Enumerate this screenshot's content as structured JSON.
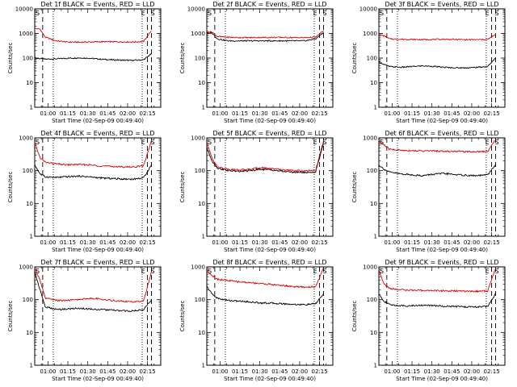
{
  "figure": {
    "background": "#ffffff",
    "colors": {
      "events": "#000000",
      "lld": "#dd0000"
    }
  },
  "chart_data": [
    {
      "type": "line",
      "title": "Det 1f BLACK = Events, RED = LLD",
      "xlabel": "Start Time (02-Sep-09 00:49:40)",
      "ylabel": "Counts/sec",
      "scale": "log",
      "ylim": [
        1,
        10000
      ],
      "xlim_minutes": [
        50,
        145
      ],
      "x_tick_labels": [
        "01:00",
        "01:15",
        "01:30",
        "01:45",
        "02:00",
        "02:15"
      ],
      "y_tick_labels": [
        "1",
        "10",
        "100",
        "1000",
        "10000"
      ],
      "markers": [
        "S",
        "E",
        "S"
      ],
      "series": [
        {
          "name": "BLACK = Events",
          "color": "#000000",
          "values": [
            100,
            95,
            90,
            93,
            98,
            102,
            98,
            90,
            85,
            82,
            80,
            85,
            150
          ]
        },
        {
          "name": "RED = LLD",
          "color": "#dd0000",
          "values": [
            1600,
            1500,
            700,
            500,
            450,
            440,
            450,
            460,
            460,
            455,
            450,
            470,
            1300
          ]
        }
      ]
    },
    {
      "type": "line",
      "title": "Det 2f BLACK = Events, RED = LLD",
      "xlabel": "Start Time (02-Sep-09 00:49:40)",
      "ylabel": "Counts/sec",
      "scale": "log",
      "ylim": [
        1,
        10000
      ],
      "xlim_minutes": [
        50,
        145
      ],
      "x_tick_labels": [
        "01:00",
        "01:15",
        "01:30",
        "01:45",
        "02:00",
        "02:15"
      ],
      "y_tick_labels": [
        "1",
        "10",
        "100",
        "1000",
        "10000"
      ],
      "markers": [
        "S",
        "E",
        "S"
      ],
      "series": [
        {
          "name": "BLACK = Events",
          "color": "#000000",
          "values": [
            1100,
            1050,
            600,
            500,
            500,
            500,
            500,
            500,
            500,
            500,
            500,
            600,
            1100
          ]
        },
        {
          "name": "RED = LLD",
          "color": "#dd0000",
          "values": [
            1200,
            1150,
            750,
            700,
            680,
            680,
            690,
            690,
            690,
            680,
            680,
            700,
            1300
          ]
        }
      ]
    },
    {
      "type": "line",
      "title": "Det 3f BLACK = Events, RED = LLD",
      "xlabel": "Start Time (02-Sep-09 00:49:40)",
      "ylabel": "Counts/sec",
      "scale": "log",
      "ylim": [
        1,
        10000
      ],
      "xlim_minutes": [
        50,
        145
      ],
      "x_tick_labels": [
        "01:00",
        "01:15",
        "01:30",
        "01:45",
        "02:00",
        "02:15"
      ],
      "y_tick_labels": [
        "1",
        "10",
        "100",
        "1000",
        "10000"
      ],
      "markers": [
        "S",
        "E",
        "S"
      ],
      "series": [
        {
          "name": "BLACK = Events",
          "color": "#000000",
          "values": [
            70,
            55,
            45,
            42,
            45,
            48,
            46,
            42,
            40,
            40,
            42,
            45,
            100
          ]
        },
        {
          "name": "RED = LLD",
          "color": "#dd0000",
          "values": [
            900,
            800,
            600,
            580,
            570,
            560,
            570,
            580,
            570,
            560,
            560,
            570,
            900
          ]
        }
      ]
    },
    {
      "type": "line",
      "title": "Det 4f BLACK = Events, RED = LLD",
      "xlabel": "Start Time (02-Sep-09 00:49:40)",
      "ylabel": "Counts/sec",
      "scale": "log",
      "ylim": [
        1,
        1000
      ],
      "xlim_minutes": [
        50,
        145
      ],
      "x_tick_labels": [
        "01:00",
        "01:15",
        "01:30",
        "01:45",
        "02:00",
        "02:15"
      ],
      "y_tick_labels": [
        "1",
        "10",
        "100",
        "1000"
      ],
      "markers": [
        "S",
        "E",
        "S"
      ],
      "series": [
        {
          "name": "BLACK = Events",
          "color": "#000000",
          "values": [
            150,
            80,
            65,
            62,
            65,
            68,
            65,
            60,
            58,
            56,
            55,
            60,
            150
          ]
        },
        {
          "name": "RED = LLD",
          "color": "#dd0000",
          "values": [
            700,
            250,
            180,
            160,
            150,
            155,
            150,
            140,
            135,
            130,
            130,
            140,
            800
          ]
        }
      ]
    },
    {
      "type": "line",
      "title": "Det 5f BLACK = Events, RED = LLD",
      "xlabel": "Start Time (02-Sep-09 00:49:40)",
      "ylabel": "Counts/sec",
      "scale": "log",
      "ylim": [
        1,
        1000
      ],
      "xlim_minutes": [
        50,
        145
      ],
      "x_tick_labels": [
        "01:00",
        "01:15",
        "01:30",
        "01:45",
        "02:00",
        "02:15"
      ],
      "y_tick_labels": [
        "1",
        "10",
        "100",
        "1000"
      ],
      "markers": [
        "S",
        "E",
        "S"
      ],
      "series": [
        {
          "name": "BLACK = Events",
          "color": "#000000",
          "values": [
            500,
            200,
            120,
            100,
            95,
            100,
            110,
            105,
            95,
            90,
            88,
            90,
            700
          ]
        },
        {
          "name": "RED = LLD",
          "color": "#dd0000",
          "values": [
            700,
            250,
            130,
            110,
            105,
            110,
            125,
            115,
            105,
            100,
            98,
            100,
            800
          ]
        }
      ]
    },
    {
      "type": "line",
      "title": "Det 6f BLACK = Events, RED = LLD",
      "xlabel": "Start Time (02-Sep-09 00:49:40)",
      "ylabel": "Counts/sec",
      "scale": "log",
      "ylim": [
        1,
        1000
      ],
      "xlim_minutes": [
        50,
        145
      ],
      "x_tick_labels": [
        "01:00",
        "01:15",
        "01:30",
        "01:45",
        "02:00",
        "02:15"
      ],
      "y_tick_labels": [
        "1",
        "10",
        "100",
        "1000"
      ],
      "markers": [
        "S",
        "E",
        "S"
      ],
      "series": [
        {
          "name": "BLACK = Events",
          "color": "#000000",
          "values": [
            150,
            110,
            90,
            80,
            75,
            70,
            78,
            82,
            76,
            72,
            70,
            75,
            150
          ]
        },
        {
          "name": "RED = LLD",
          "color": "#dd0000",
          "values": [
            800,
            600,
            450,
            420,
            410,
            400,
            400,
            390,
            390,
            380,
            380,
            390,
            900
          ]
        }
      ]
    },
    {
      "type": "line",
      "title": "Det 7f BLACK = Events, RED = LLD",
      "xlabel": "Start Time (02-Sep-09 00:49:40)",
      "ylabel": "Counts/sec",
      "scale": "log",
      "ylim": [
        1,
        1000
      ],
      "xlim_minutes": [
        50,
        145
      ],
      "x_tick_labels": [
        "01:00",
        "01:15",
        "01:30",
        "01:45",
        "02:00",
        "02:15"
      ],
      "y_tick_labels": [
        "1",
        "10",
        "100",
        "1000"
      ],
      "markers": [
        "S",
        "E",
        "S"
      ],
      "series": [
        {
          "name": "BLACK = Events",
          "color": "#000000",
          "values": [
            700,
            200,
            60,
            50,
            52,
            55,
            52,
            50,
            48,
            46,
            45,
            50,
            100
          ]
        },
        {
          "name": "RED = LLD",
          "color": "#dd0000",
          "values": [
            900,
            400,
            110,
            95,
            95,
            100,
            110,
            105,
            95,
            90,
            85,
            90,
            700
          ]
        }
      ]
    },
    {
      "type": "line",
      "title": "Det 8f BLACK = Events, RED = LLD",
      "xlabel": "Start Time (02-Sep-09 00:49:40)",
      "ylabel": "Counts/sec",
      "scale": "log",
      "ylim": [
        1,
        1000
      ],
      "xlim_minutes": [
        50,
        145
      ],
      "x_tick_labels": [
        "01:00",
        "01:15",
        "01:30",
        "01:45",
        "02:00",
        "02:15"
      ],
      "y_tick_labels": [
        "1",
        "10",
        "100",
        "1000"
      ],
      "markers": [
        "S",
        "E",
        "S"
      ],
      "series": [
        {
          "name": "BLACK = Events",
          "color": "#000000",
          "values": [
            250,
            150,
            110,
            95,
            90,
            85,
            80,
            78,
            75,
            72,
            70,
            75,
            150
          ]
        },
        {
          "name": "RED = LLD",
          "color": "#dd0000",
          "values": [
            800,
            550,
            420,
            380,
            350,
            330,
            310,
            290,
            270,
            250,
            240,
            250,
            900
          ]
        }
      ]
    },
    {
      "type": "line",
      "title": "Det 9f BLACK = Events, RED = LLD",
      "xlabel": "Start Time (02-Sep-09 00:49:40)",
      "ylabel": "Counts/sec",
      "scale": "log",
      "ylim": [
        1,
        1000
      ],
      "xlim_minutes": [
        50,
        145
      ],
      "x_tick_labels": [
        "01:00",
        "01:15",
        "01:30",
        "01:45",
        "02:00",
        "02:15"
      ],
      "y_tick_labels": [
        "1",
        "10",
        "100",
        "1000"
      ],
      "markers": [
        "S",
        "E",
        "S"
      ],
      "series": [
        {
          "name": "BLACK = Events",
          "color": "#000000",
          "values": [
            150,
            90,
            70,
            65,
            65,
            68,
            66,
            63,
            62,
            60,
            60,
            62,
            150
          ]
        },
        {
          "name": "RED = LLD",
          "color": "#dd0000",
          "values": [
            800,
            300,
            220,
            200,
            195,
            190,
            190,
            185,
            185,
            180,
            180,
            185,
            900
          ]
        }
      ]
    }
  ]
}
